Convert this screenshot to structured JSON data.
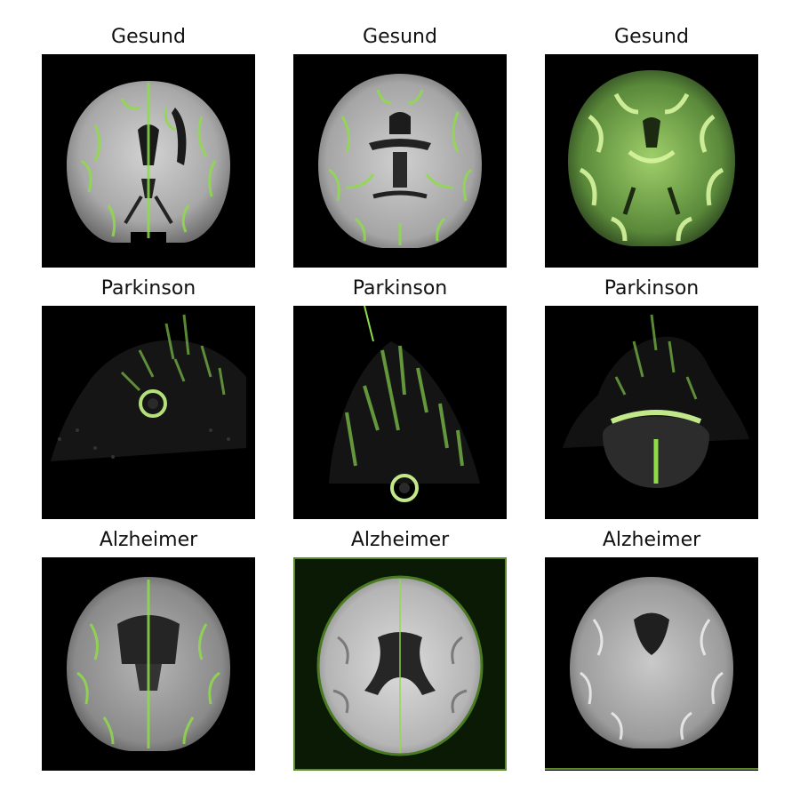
{
  "panels": [
    {
      "title": "Gesund"
    },
    {
      "title": "Gesund"
    },
    {
      "title": "Gesund"
    },
    {
      "title": "Parkinson"
    },
    {
      "title": "Parkinson"
    },
    {
      "title": "Parkinson"
    },
    {
      "title": "Alzheimer"
    },
    {
      "title": "Alzheimer"
    },
    {
      "title": "Alzheimer"
    }
  ],
  "colors": {
    "background": "#000000",
    "tissue": "#b8b8b8",
    "overlay": "#8fdc4a"
  }
}
